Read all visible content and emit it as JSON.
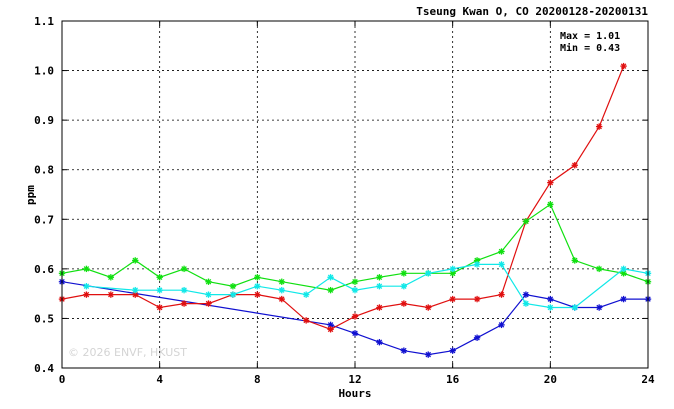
{
  "chart_data": {
    "type": "line",
    "title": "Tseung Kwan O, CO 20200128-20200131",
    "xlabel": "Hours",
    "ylabel": "ppm",
    "xlim": [
      0,
      24
    ],
    "ylim": [
      0.4,
      1.1
    ],
    "x_ticks": [
      "0",
      "4",
      "8",
      "12",
      "16",
      "20",
      "24"
    ],
    "y_ticks": [
      "0.4",
      "0.5",
      "0.6",
      "0.7",
      "0.8",
      "0.9",
      "1.0",
      "1.1"
    ],
    "grid": true,
    "annotations": [
      "Max = 1.01",
      "Min = 0.43"
    ],
    "watermark": "© 2026 ENVF, HKUST",
    "x": [
      0,
      1,
      2,
      3,
      4,
      5,
      6,
      7,
      8,
      9,
      10,
      11,
      12,
      13,
      14,
      15,
      16,
      17,
      18,
      19,
      20,
      21,
      22,
      23,
      24
    ],
    "series": [
      {
        "color": "#1010d0",
        "values": [
          0.574,
          null,
          null,
          null,
          null,
          null,
          null,
          null,
          null,
          null,
          null,
          0.487,
          0.47,
          0.452,
          0.435,
          0.427,
          0.435,
          0.461,
          0.487,
          0.548,
          0.539,
          0.522,
          0.522,
          0.539,
          0.539
        ]
      },
      {
        "color": "#e01010",
        "values": [
          0.539,
          0.548,
          0.548,
          0.548,
          0.522,
          0.53,
          0.53,
          0.548,
          0.548,
          0.539,
          0.496,
          0.478,
          0.504,
          0.522,
          0.53,
          0.522,
          0.539,
          0.539,
          0.548,
          0.696,
          0.774,
          0.809,
          0.887,
          1.009,
          null
        ]
      },
      {
        "color": "#10e010",
        "values": [
          0.591,
          0.6,
          0.583,
          0.617,
          0.583,
          0.6,
          0.574,
          0.565,
          0.583,
          0.574,
          null,
          0.557,
          0.574,
          0.583,
          0.591,
          0.591,
          0.591,
          0.617,
          0.635,
          0.696,
          0.73,
          0.617,
          0.6,
          0.591,
          0.574
        ]
      },
      {
        "color": "#10e8e8",
        "values": [
          null,
          0.565,
          null,
          0.557,
          0.557,
          0.557,
          0.548,
          0.548,
          0.565,
          0.557,
          0.548,
          0.583,
          0.557,
          0.565,
          0.565,
          0.591,
          0.6,
          0.609,
          0.609,
          0.53,
          0.522,
          0.522,
          null,
          0.6,
          0.591
        ]
      }
    ]
  }
}
